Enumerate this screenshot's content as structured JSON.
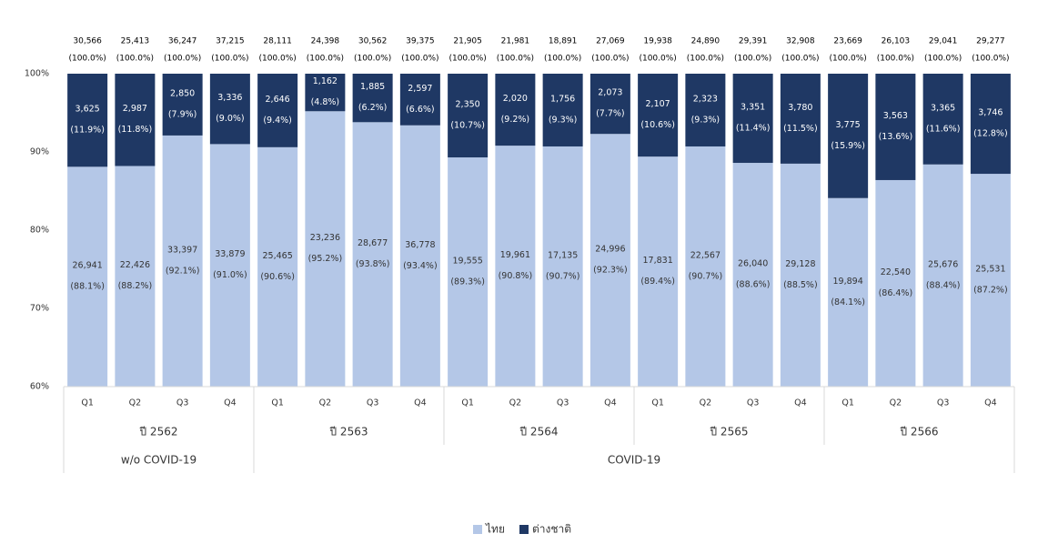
{
  "chart_data": {
    "type": "stacked-bar-100",
    "groups": [
      {
        "label": "w/o COVID-19",
        "years": [
          {
            "label": "ปี 2562",
            "categories": [
              "Q1",
              "Q2",
              "Q3",
              "Q4"
            ]
          }
        ]
      },
      {
        "label": "COVID-19",
        "years": [
          {
            "label": "ปี 2563",
            "categories": [
              "Q1",
              "Q2",
              "Q3",
              "Q4"
            ]
          },
          {
            "label": "ปี 2564",
            "categories": [
              "Q1",
              "Q2",
              "Q3",
              "Q4"
            ]
          },
          {
            "label": "ปี 2565",
            "categories": [
              "Q1",
              "Q2",
              "Q3",
              "Q4"
            ]
          },
          {
            "label": "ปี 2566",
            "categories": [
              "Q1",
              "Q2",
              "Q3",
              "Q4"
            ]
          }
        ]
      }
    ],
    "totals": [
      "30,566",
      "25,413",
      "36,247",
      "37,215",
      "28,111",
      "24,398",
      "30,562",
      "39,375",
      "21,905",
      "21,981",
      "18,891",
      "27,069",
      "19,938",
      "24,890",
      "29,391",
      "32,908",
      "23,669",
      "26,103",
      "29,041",
      "29,277"
    ],
    "total_labels": [
      "(100.0%)",
      "(100.0%)",
      "(100.0%)",
      "(100.0%)",
      "(100.0%)",
      "(100.0%)",
      "(100.0%)",
      "(100.0%)",
      "(100.0%)",
      "(100.0%)",
      "(100.0%)",
      "(100.0%)",
      "(100.0%)",
      "(100.0%)",
      "(100.0%)",
      "(100.0%)",
      "(100.0%)",
      "(100.0%)",
      "(100.0%)",
      "(100.0%)"
    ],
    "series": [
      {
        "name": "ไทย",
        "color": "#b4c7e7",
        "counts": [
          "26,941",
          "22,426",
          "33,397",
          "33,879",
          "25,465",
          "23,236",
          "28,677",
          "36,778",
          "19,555",
          "19,961",
          "17,135",
          "24,996",
          "17,831",
          "22,567",
          "26,040",
          "29,128",
          "19,894",
          "22,540",
          "25,676",
          "25,531"
        ],
        "values": [
          88.1,
          88.2,
          92.1,
          91.0,
          90.6,
          95.2,
          93.8,
          93.4,
          89.3,
          90.8,
          90.7,
          92.3,
          89.4,
          90.7,
          88.6,
          88.5,
          84.1,
          86.4,
          88.4,
          87.2
        ],
        "value_labels": [
          "(88.1%)",
          "(88.2%)",
          "(92.1%)",
          "(91.0%)",
          "(90.6%)",
          "(95.2%)",
          "(93.8%)",
          "(93.4%)",
          "(89.3%)",
          "(90.8%)",
          "(90.7%)",
          "(92.3%)",
          "(89.4%)",
          "(90.7%)",
          "(88.6%)",
          "(88.5%)",
          "(84.1%)",
          "(86.4%)",
          "(88.4%)",
          "(87.2%)"
        ]
      },
      {
        "name": "ต่างชาติ",
        "color": "#1f3864",
        "counts": [
          "3,625",
          "2,987",
          "2,850",
          "3,336",
          "2,646",
          "1,162",
          "1,885",
          "2,597",
          "2,350",
          "2,020",
          "1,756",
          "2,073",
          "2,107",
          "2,323",
          "3,351",
          "3,780",
          "3,775",
          "3,563",
          "3,365",
          "3,746"
        ],
        "values": [
          11.9,
          11.8,
          7.9,
          9.0,
          9.4,
          4.8,
          6.2,
          6.6,
          10.7,
          9.2,
          9.3,
          7.7,
          10.6,
          9.3,
          11.4,
          11.5,
          15.9,
          13.6,
          11.6,
          12.8
        ],
        "value_labels": [
          "(11.9%)",
          "(11.8%)",
          "(7.9%)",
          "(9.0%)",
          "(9.4%)",
          "(4.8%)",
          "(6.2%)",
          "(6.6%)",
          "(10.7%)",
          "(9.2%)",
          "(9.3%)",
          "(7.7%)",
          "(10.6%)",
          "(9.3%)",
          "(11.4%)",
          "(11.5%)",
          "(15.9%)",
          "(13.6%)",
          "(11.6%)",
          "(12.8%)"
        ]
      }
    ],
    "ylim": [
      60,
      100
    ],
    "yticks": [
      {
        "value": 60,
        "label": "60%"
      },
      {
        "value": 70,
        "label": "70%"
      },
      {
        "value": 80,
        "label": "80%"
      },
      {
        "value": 90,
        "label": "90%"
      },
      {
        "value": 100,
        "label": "100%"
      }
    ],
    "legend": "bottom"
  }
}
